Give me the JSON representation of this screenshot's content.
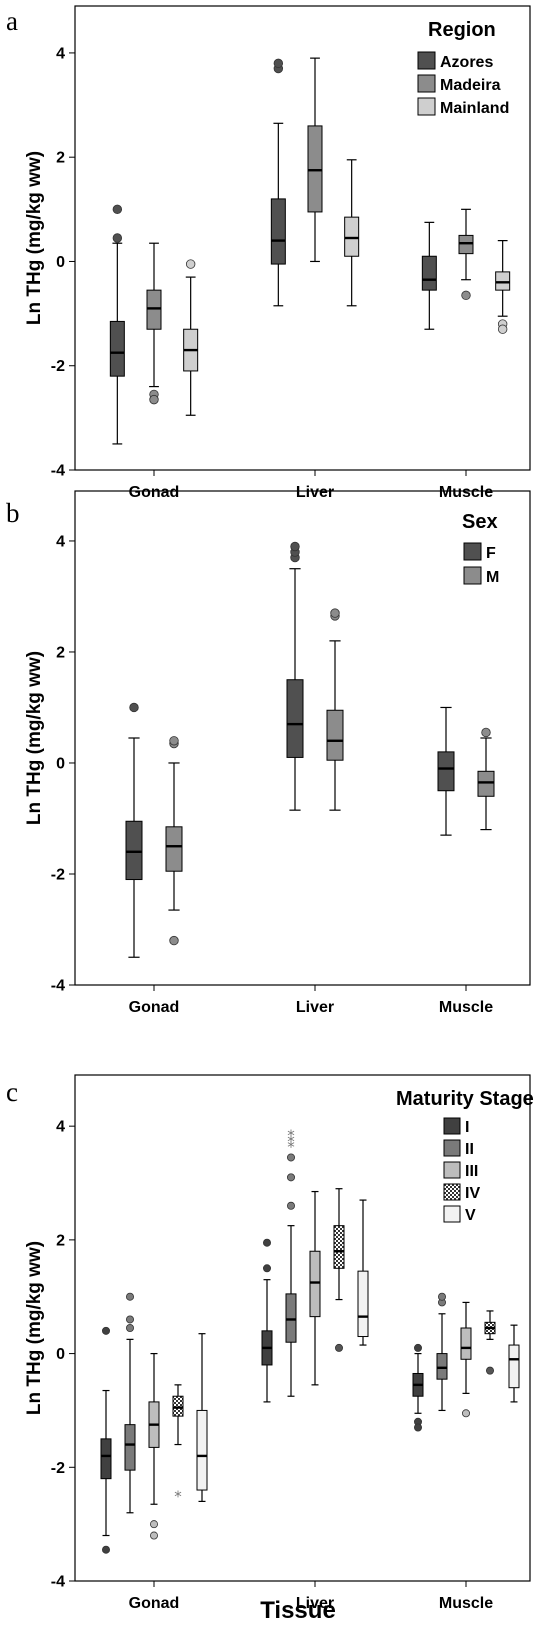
{
  "colors": {
    "azores": "#505050",
    "madeira": "#8c8c8c",
    "mainland": "#cfcfcf",
    "F": "#505050",
    "M": "#8c8c8c",
    "I": "#404040",
    "II": "#7a7a7a",
    "III": "#bdbdbd",
    "IV": "checker",
    "V": "#f2f2f2"
  },
  "x_title": "Tissue",
  "chart_data": [
    {
      "type": "box",
      "panel": "a",
      "ylabel": "Ln THg (mg/kg ww)",
      "ylim": [
        -4,
        4.9
      ],
      "yticks": [
        "4",
        "2",
        "0",
        "-2",
        "-4"
      ],
      "categories": [
        "Gonad",
        "Liver",
        "Muscle"
      ],
      "legend_title": "Region",
      "legend_placement": "top-right",
      "series": [
        {
          "name": "Azores",
          "color_key": "azores",
          "boxes": [
            {
              "min": -3.5,
              "q1": -2.2,
              "median": -1.75,
              "q3": -1.15,
              "max": 0.35,
              "outliers": [
                0.45,
                1.0
              ]
            },
            {
              "min": -0.85,
              "q1": -0.05,
              "median": 0.4,
              "q3": 1.2,
              "max": 2.65,
              "outliers": [
                3.7,
                3.8
              ]
            },
            {
              "min": -1.3,
              "q1": -0.55,
              "median": -0.35,
              "q3": 0.1,
              "max": 0.75,
              "outliers": []
            }
          ]
        },
        {
          "name": "Madeira",
          "color_key": "madeira",
          "boxes": [
            {
              "min": -2.4,
              "q1": -1.3,
              "median": -0.9,
              "q3": -0.55,
              "max": 0.35,
              "outliers": [
                -2.55,
                -2.65
              ]
            },
            {
              "min": 0.0,
              "q1": 0.95,
              "median": 1.75,
              "q3": 2.6,
              "max": 3.9,
              "outliers": []
            },
            {
              "min": -0.35,
              "q1": 0.15,
              "median": 0.35,
              "q3": 0.5,
              "max": 1.0,
              "outliers": [
                -0.65
              ]
            }
          ]
        },
        {
          "name": "Mainland",
          "color_key": "mainland",
          "boxes": [
            {
              "min": -2.95,
              "q1": -2.1,
              "median": -1.7,
              "q3": -1.3,
              "max": -0.3,
              "outliers": [
                -0.05
              ]
            },
            {
              "min": -0.85,
              "q1": 0.1,
              "median": 0.45,
              "q3": 0.85,
              "max": 1.95,
              "outliers": []
            },
            {
              "min": -1.05,
              "q1": -0.55,
              "median": -0.4,
              "q3": -0.2,
              "max": 0.4,
              "outliers": [
                -1.2,
                -1.3
              ]
            }
          ]
        }
      ]
    },
    {
      "type": "box",
      "panel": "b",
      "ylabel": "Ln THg (mg/kg ww)",
      "ylim": [
        -4,
        4.9
      ],
      "yticks": [
        "4",
        "2",
        "0",
        "-2",
        "-4"
      ],
      "categories": [
        "Gonad",
        "Liver",
        "Muscle"
      ],
      "legend_title": "Sex",
      "legend_placement": "top-right",
      "series": [
        {
          "name": "F",
          "color_key": "F",
          "boxes": [
            {
              "min": -3.5,
              "q1": -2.1,
              "median": -1.6,
              "q3": -1.05,
              "max": 0.45,
              "outliers": [
                1.0
              ]
            },
            {
              "min": -0.85,
              "q1": 0.1,
              "median": 0.7,
              "q3": 1.5,
              "max": 3.5,
              "outliers": [
                3.7,
                3.8,
                3.9
              ]
            },
            {
              "min": -1.3,
              "q1": -0.5,
              "median": -0.1,
              "q3": 0.2,
              "max": 1.0,
              "outliers": []
            }
          ]
        },
        {
          "name": "M",
          "color_key": "M",
          "boxes": [
            {
              "min": -2.65,
              "q1": -1.95,
              "median": -1.5,
              "q3": -1.15,
              "max": 0.0,
              "outliers": [
                0.35,
                0.4,
                -3.2
              ]
            },
            {
              "min": -0.85,
              "q1": 0.05,
              "median": 0.4,
              "q3": 0.95,
              "max": 2.2,
              "outliers": [
                2.65,
                2.7
              ]
            },
            {
              "min": -1.2,
              "q1": -0.6,
              "median": -0.35,
              "q3": -0.15,
              "max": 0.45,
              "outliers": [
                0.55
              ]
            }
          ]
        }
      ]
    },
    {
      "type": "box",
      "panel": "c",
      "ylabel": "Ln THg (mg/kg ww)",
      "ylim": [
        -4,
        4.9
      ],
      "yticks": [
        "4",
        "2",
        "0",
        "-2",
        "-4"
      ],
      "categories": [
        "Gonad",
        "Liver",
        "Muscle"
      ],
      "legend_title": "Maturity Stage",
      "legend_placement": "top-right",
      "series": [
        {
          "name": "I",
          "color_key": "I",
          "boxes": [
            {
              "min": -3.2,
              "q1": -2.2,
              "median": -1.8,
              "q3": -1.5,
              "max": -0.65,
              "outliers": [
                0.4,
                -3.45
              ]
            },
            {
              "min": -0.85,
              "q1": -0.2,
              "median": 0.1,
              "q3": 0.4,
              "max": 1.3,
              "outliers": [
                1.5,
                1.95
              ]
            },
            {
              "min": -1.05,
              "q1": -0.75,
              "median": -0.55,
              "q3": -0.35,
              "max": 0.0,
              "outliers": [
                0.1,
                -1.2,
                -1.3
              ]
            }
          ]
        },
        {
          "name": "II",
          "color_key": "II",
          "boxes": [
            {
              "min": -2.8,
              "q1": -2.05,
              "median": -1.6,
              "q3": -1.25,
              "max": 0.25,
              "outliers": [
                0.45,
                0.6,
                1.0
              ]
            },
            {
              "min": -0.75,
              "q1": 0.2,
              "median": 0.6,
              "q3": 1.05,
              "max": 2.25,
              "outliers": [
                2.6,
                3.1,
                3.45
              ],
              "extremes": [
                3.65,
                3.75,
                3.85
              ]
            },
            {
              "min": -1.0,
              "q1": -0.45,
              "median": -0.25,
              "q3": 0.0,
              "max": 0.7,
              "outliers": [
                0.9,
                1.0
              ]
            }
          ]
        },
        {
          "name": "III",
          "color_key": "III",
          "boxes": [
            {
              "min": -2.65,
              "q1": -1.65,
              "median": -1.25,
              "q3": -0.85,
              "max": 0.0,
              "outliers": [
                -3.0,
                -3.2
              ]
            },
            {
              "min": -0.55,
              "q1": 0.65,
              "median": 1.25,
              "q3": 1.8,
              "max": 2.85,
              "outliers": []
            },
            {
              "min": -0.7,
              "q1": -0.1,
              "median": 0.1,
              "q3": 0.45,
              "max": 0.9,
              "outliers": [
                -1.05
              ]
            }
          ]
        },
        {
          "name": "IV",
          "color_key": "IV",
          "boxes": [
            {
              "min": -1.6,
              "q1": -1.1,
              "median": -0.95,
              "q3": -0.75,
              "max": -0.55,
              "outliers": [],
              "extremes": [
                -2.5
              ]
            },
            {
              "min": 0.95,
              "q1": 1.5,
              "median": 1.8,
              "q3": 2.25,
              "max": 2.9,
              "outliers": [
                0.1
              ]
            },
            {
              "min": 0.25,
              "q1": 0.35,
              "median": 0.45,
              "q3": 0.55,
              "max": 0.75,
              "outliers": [
                -0.3
              ]
            }
          ]
        },
        {
          "name": "V",
          "color_key": "V",
          "boxes": [
            {
              "min": -2.6,
              "q1": -2.4,
              "median": -1.8,
              "q3": -1.0,
              "max": 0.35,
              "outliers": []
            },
            {
              "min": 0.15,
              "q1": 0.3,
              "median": 0.65,
              "q3": 1.45,
              "max": 2.7,
              "outliers": []
            },
            {
              "min": -0.85,
              "q1": -0.6,
              "median": -0.1,
              "q3": 0.15,
              "max": 0.5,
              "outliers": []
            }
          ]
        }
      ]
    }
  ]
}
